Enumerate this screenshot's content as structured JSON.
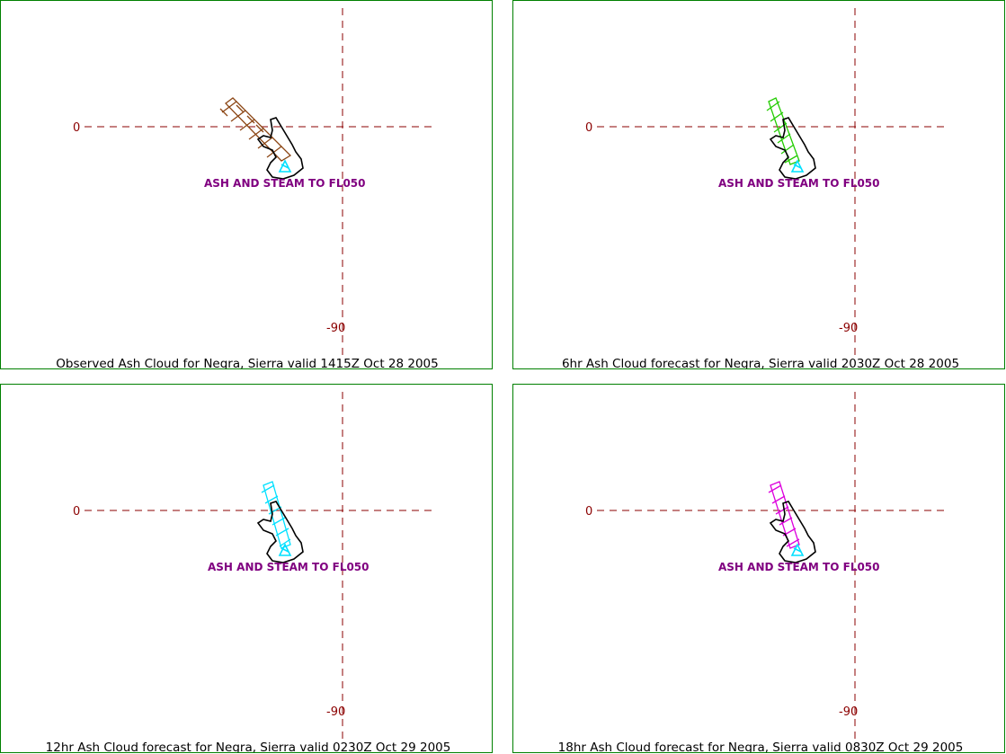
{
  "colors": {
    "frame": "#008000",
    "gridline": "#8b0000",
    "axis_label": "#8b0000",
    "annotation": "#800080",
    "coastline": "#000000",
    "volcano_marker": "#00e0ff"
  },
  "panels": [
    {
      "id": "observed",
      "caption": "Observed Ash Cloud for Negra,  Sierra valid 1415Z Oct 28 2005",
      "annotation": "ASH  AND STEAM TO FL050",
      "lat_label": "0",
      "lon_label": "-90",
      "ash_color": "#8b4513",
      "ash_extent": "northwest"
    },
    {
      "id": "forecast-6hr",
      "caption": "6hr Ash Cloud forecast for Negra,  Sierra valid 2030Z Oct 28 2005",
      "annotation": "ASH  AND STEAM TO FL050",
      "lat_label": "0",
      "lon_label": "-90",
      "ash_color": "#22cc00",
      "ash_extent": "north"
    },
    {
      "id": "forecast-12hr",
      "caption": "12hr Ash Cloud forecast for Negra,  Sierra valid 0230Z Oct 29 2005",
      "annotation": "ASH  AND STEAM TO FL050",
      "lat_label": "0",
      "lon_label": "-90",
      "ash_color": "#00e0ff",
      "ash_extent": "north"
    },
    {
      "id": "forecast-18hr",
      "caption": "18hr Ash Cloud forecast for Negra,  Sierra valid 0830Z Oct 29 2005",
      "annotation": "ASH  AND STEAM TO FL050",
      "lat_label": "0",
      "lon_label": "-90",
      "ash_color": "#dd00dd",
      "ash_extent": "north"
    }
  ]
}
